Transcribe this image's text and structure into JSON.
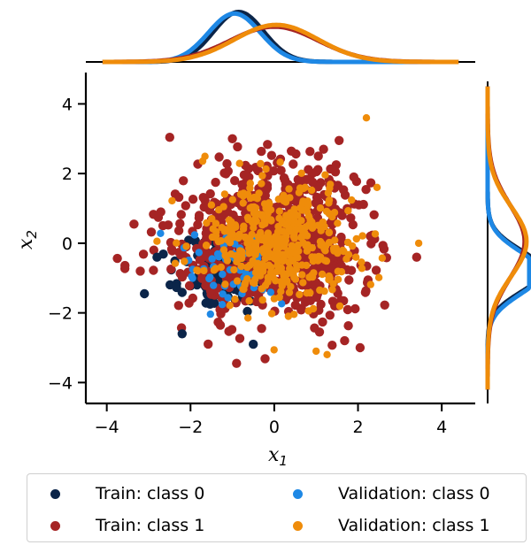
{
  "chart_data": {
    "type": "scatter",
    "xlabel": "x",
    "xlabel_sub": "1",
    "ylabel": "x",
    "ylabel_sub": "2",
    "xlim": [
      -4.5,
      4.8
    ],
    "ylim": [
      -4.6,
      4.9
    ],
    "xticks": [
      -4,
      -2,
      0,
      2,
      4
    ],
    "yticks": [
      -4,
      -2,
      0,
      2,
      4
    ],
    "xtick_labels": [
      "−4",
      "−2",
      "0",
      "2",
      "4"
    ],
    "ytick_labels": [
      "−4",
      "−2",
      "0",
      "2",
      "4"
    ],
    "grid": false,
    "legend_position": "bottom",
    "series": [
      {
        "name": "Train: class 0",
        "color": "#0b2549",
        "n": 160,
        "mean": [
          -1.1,
          -0.8
        ],
        "std": [
          0.55,
          0.55
        ],
        "seed": 11
      },
      {
        "name": "Train: class 1",
        "color": "#a52424",
        "n": 800,
        "mean": [
          0.0,
          0.05
        ],
        "std": [
          1.05,
          1.05
        ],
        "seed": 22
      },
      {
        "name": "Validation: class 0",
        "color": "#1e88e5",
        "n": 55,
        "mean": [
          -1.1,
          -0.8
        ],
        "std": [
          0.55,
          0.55
        ],
        "seed": 33
      },
      {
        "name": "Validation: class 1",
        "color": "#ef8c0a",
        "n": 420,
        "mean": [
          0.05,
          0.05
        ],
        "std": [
          0.95,
          0.95
        ],
        "seed": 44
      }
    ],
    "outliers": [
      {
        "series": 1,
        "x": -3.35,
        "y": 0.55
      },
      {
        "series": 1,
        "x": -3.2,
        "y": -0.8
      },
      {
        "series": 1,
        "x": -1.0,
        "y": 3.0
      },
      {
        "series": 1,
        "x": -0.9,
        "y": -3.45
      },
      {
        "series": 1,
        "x": 1.55,
        "y": 2.95
      },
      {
        "series": 1,
        "x": 1.9,
        "y": 1.9
      },
      {
        "series": 1,
        "x": 2.05,
        "y": -3.0
      },
      {
        "series": 1,
        "x": 3.4,
        "y": -0.4
      },
      {
        "series": 3,
        "x": 2.2,
        "y": 3.6
      },
      {
        "series": 3,
        "x": 3.45,
        "y": 0.0
      },
      {
        "series": 3,
        "x": 1.0,
        "y": -3.1
      },
      {
        "series": 0,
        "x": -3.1,
        "y": -1.45
      },
      {
        "series": 0,
        "x": -2.8,
        "y": -0.4
      },
      {
        "series": 0,
        "x": -2.2,
        "y": -2.6
      },
      {
        "series": 0,
        "x": -0.5,
        "y": -2.9
      }
    ],
    "marginal_top": [
      {
        "series": "class 0",
        "color": "#0b2549",
        "mean": -0.85,
        "std": 0.6
      },
      {
        "series": "class 0 validation",
        "color": "#1e88e5",
        "mean": -0.95,
        "std": 0.62
      },
      {
        "series": "class 1",
        "color": "#a52424",
        "mean": 0.0,
        "std": 1.05
      },
      {
        "series": "class 1 validation",
        "color": "#ef8c0a",
        "mean": 0.05,
        "std": 1.0
      }
    ],
    "marginal_right": [
      {
        "series": "class 0",
        "color": "#0b2549",
        "mean": -0.8,
        "std": 0.6
      },
      {
        "series": "class 0 validation",
        "color": "#1e88e5",
        "mean": -0.85,
        "std": 0.62
      },
      {
        "series": "class 1",
        "color": "#a52424",
        "mean": 0.05,
        "std": 1.05
      },
      {
        "series": "class 1 validation",
        "color": "#ef8c0a",
        "mean": 0.05,
        "std": 1.0
      }
    ]
  },
  "legend": [
    {
      "label": "Train: class 0",
      "color": "#0b2549"
    },
    {
      "label": "Validation: class 0",
      "color": "#1e88e5"
    },
    {
      "label": "Train: class 1",
      "color": "#a52424"
    },
    {
      "label": "Validation: class 1",
      "color": "#ef8c0a"
    }
  ]
}
